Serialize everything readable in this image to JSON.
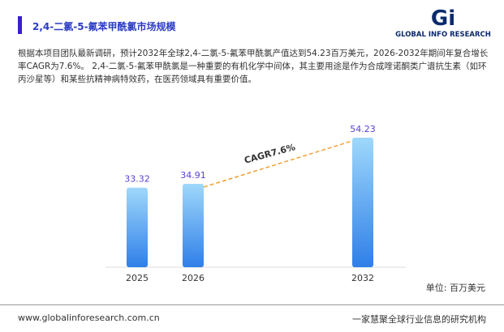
{
  "chart_data": {
    "type": "bar",
    "title": "2,4-二氯-5-氟苯甲酰氯市场规模",
    "brand": "GLOBAL INFO RESEARCH",
    "subtitle": "根据本项目团队最新调研，预计2032年全球2,4-二氯-5-氟苯甲酰氯产值达到54.23百万美元，2026-2032年期间年复合增长率CAGR为7.6%。 2,4-二氯-5-氟苯甲酰氯是一种重要的有机化学中间体，其主要用途是作为合成喹诺酮类广谱抗生素（如环丙沙星等）和某些抗精神病特效药，在医药领域具有重要价值。",
    "categories": [
      "2025",
      "2026",
      "2032"
    ],
    "values": [
      33.32,
      34.91,
      54.23
    ],
    "color": "#2f7fe8",
    "annotation": "CAGR7.6%",
    "unit": "单位: 百万美元",
    "footer_left": "www.globalinforesearch.com.cn",
    "footer_right": "一家慧聚全球行业信息的研究机构"
  }
}
